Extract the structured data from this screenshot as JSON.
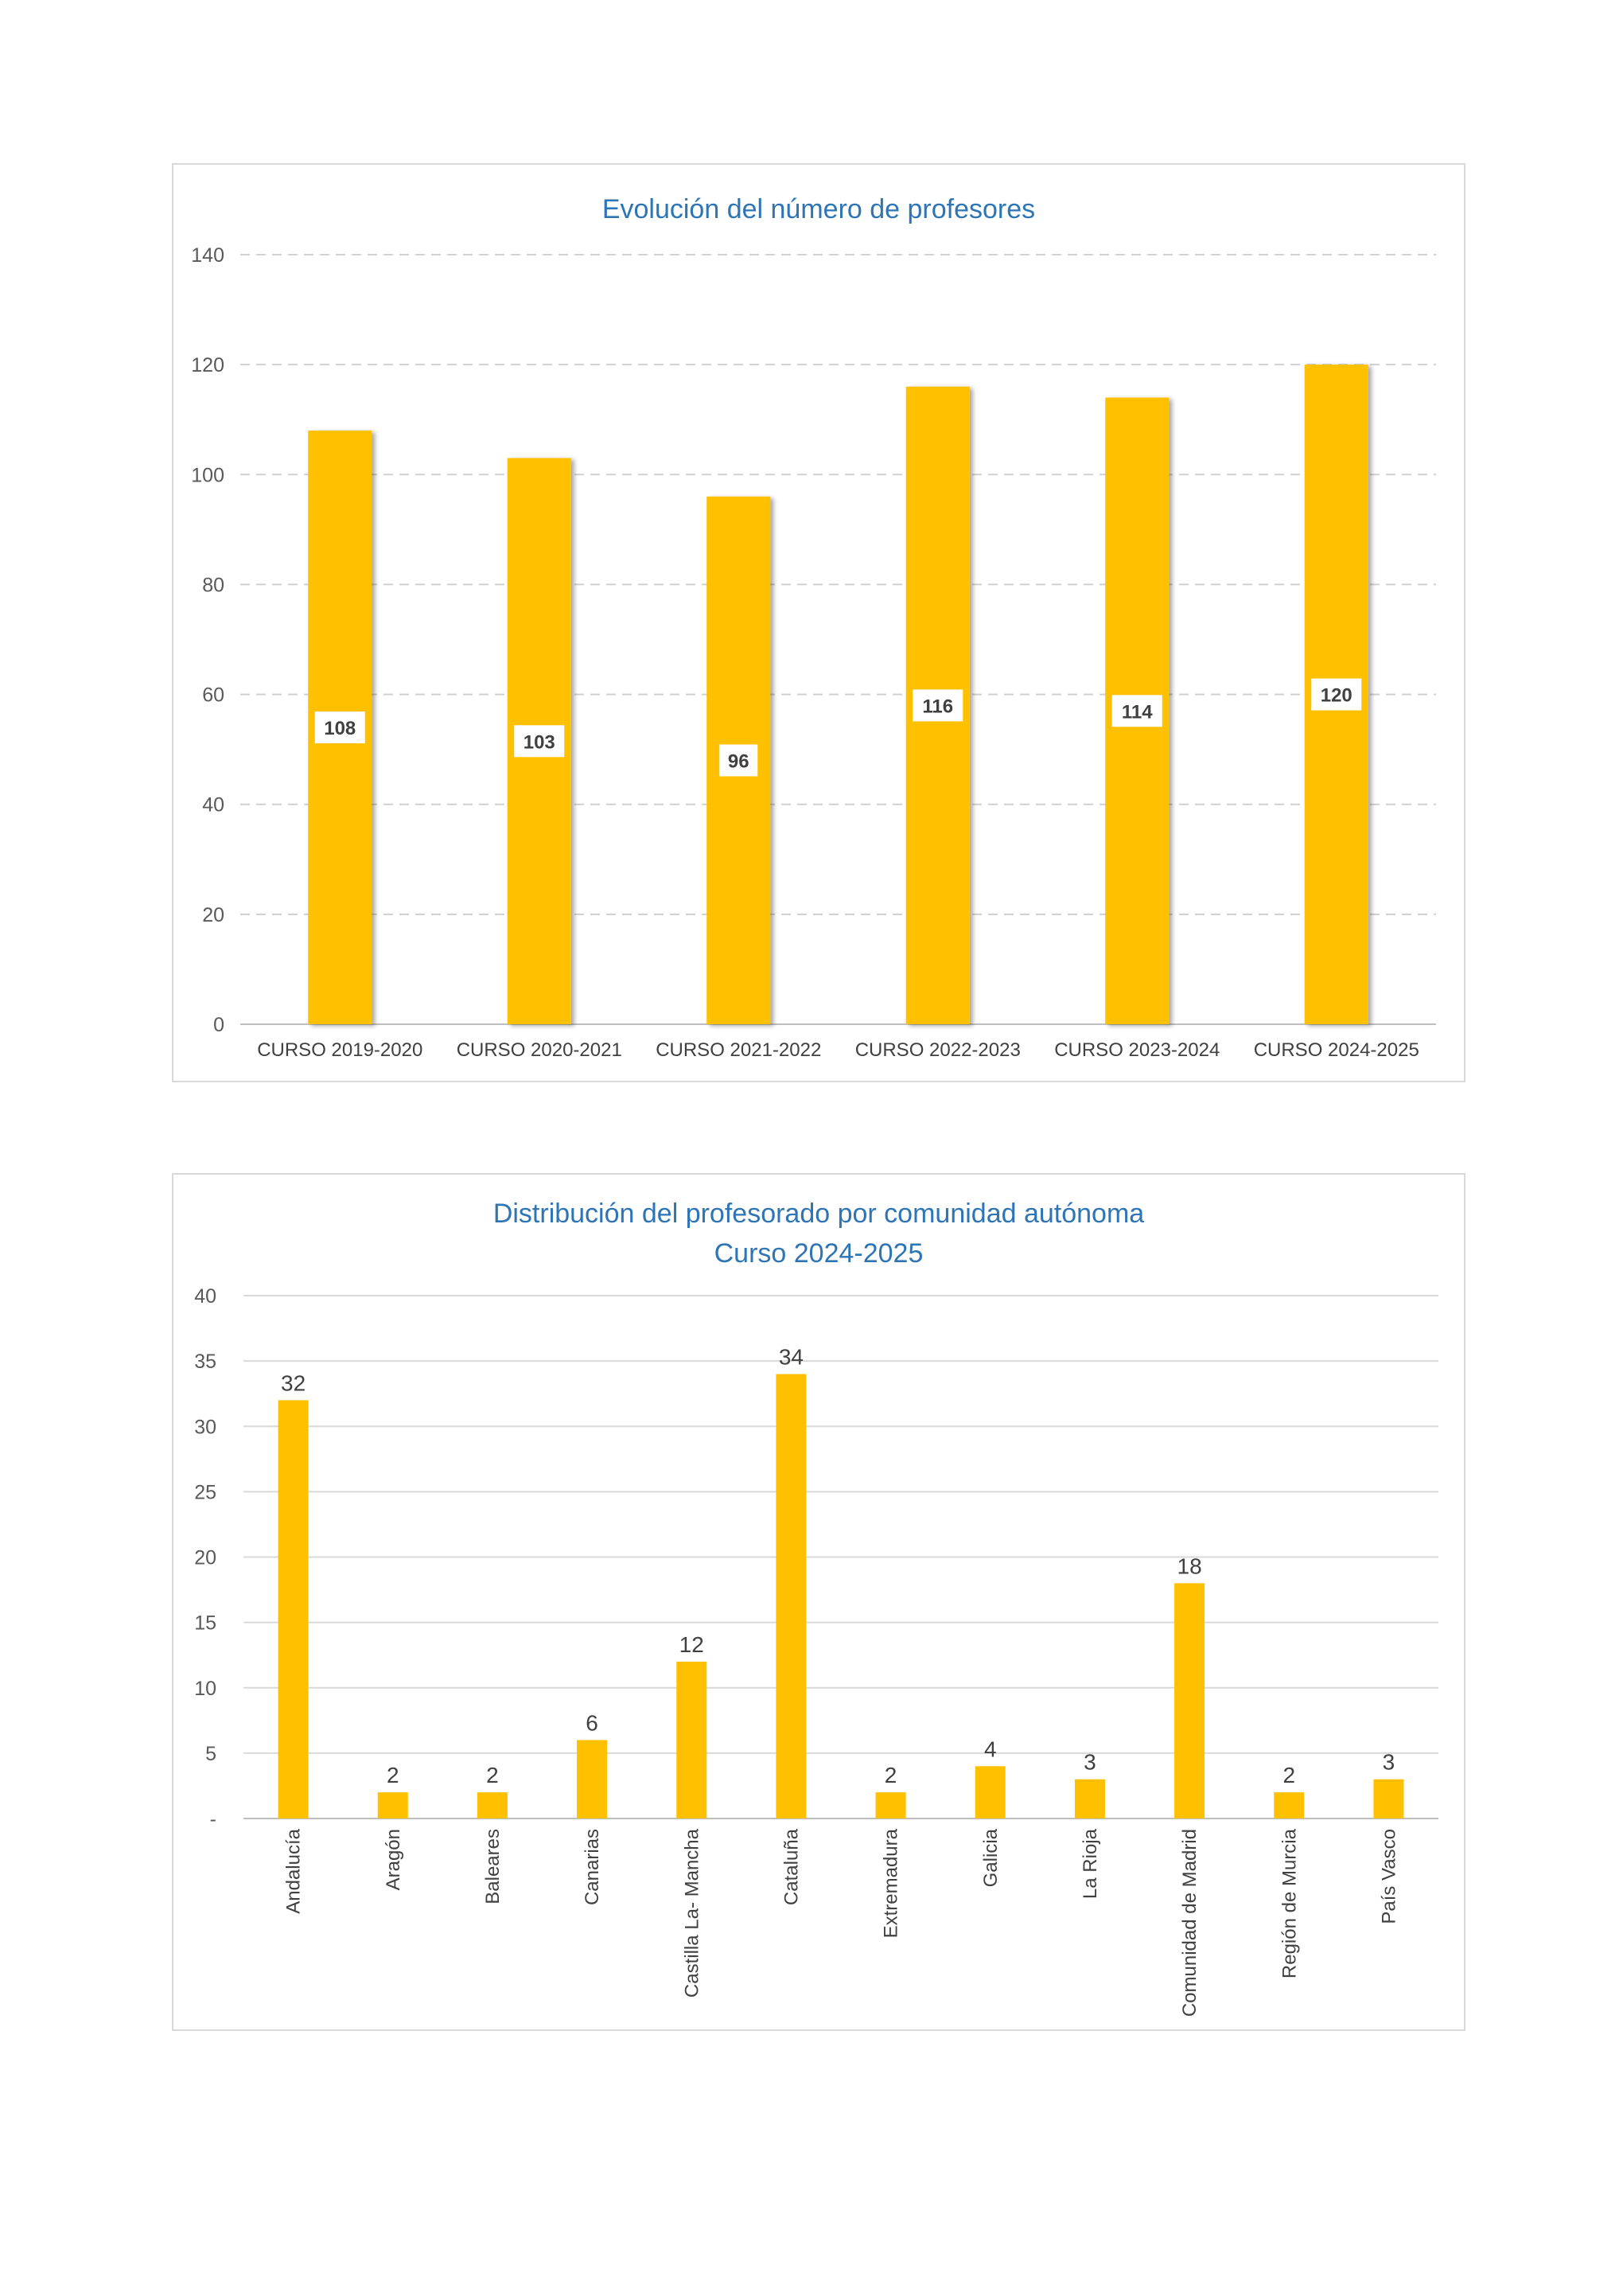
{
  "chart_data": [
    {
      "type": "bar",
      "title": "Evolución del número de profesores",
      "categories": [
        "CURSO 2019-2020",
        "CURSO 2020-2021",
        "CURSO 2021-2022",
        "CURSO 2022-2023",
        "CURSO 2023-2024",
        "CURSO 2024-2025"
      ],
      "values": [
        108,
        103,
        96,
        116,
        114,
        120
      ],
      "data_labels": [
        "108",
        "103",
        "96",
        "116",
        "114",
        "120"
      ],
      "y_ticks": [
        "0",
        "20",
        "40",
        "60",
        "80",
        "100",
        "120",
        "140"
      ],
      "ylim": [
        0,
        140
      ],
      "grid": "dashed",
      "legend": "none",
      "bar_color": "#ffc000"
    },
    {
      "type": "bar",
      "title": "Distribución del profesorado por comunidad autónoma",
      "subtitle": "Curso 2024-2025",
      "categories": [
        "Andalucía",
        "Aragón",
        "Baleares",
        "Canarias",
        "Castilla La- Mancha",
        "Cataluña",
        "Extremadura",
        "Galicia",
        "La Rioja",
        "Comunidad de Madrid",
        "Región de Murcia",
        "País Vasco"
      ],
      "values": [
        32,
        2,
        2,
        6,
        12,
        34,
        2,
        4,
        3,
        18,
        2,
        3
      ],
      "data_labels": [
        "32",
        "2",
        "2",
        "6",
        "12",
        "34",
        "2",
        "4",
        "3",
        "18",
        "2",
        "3"
      ],
      "y_ticks": [
        "-",
        "5",
        "10",
        "15",
        "20",
        "25",
        "30",
        "35",
        "40"
      ],
      "ylim": [
        0,
        40
      ],
      "grid": "solid",
      "legend": "none",
      "bar_color": "#ffc000"
    }
  ]
}
